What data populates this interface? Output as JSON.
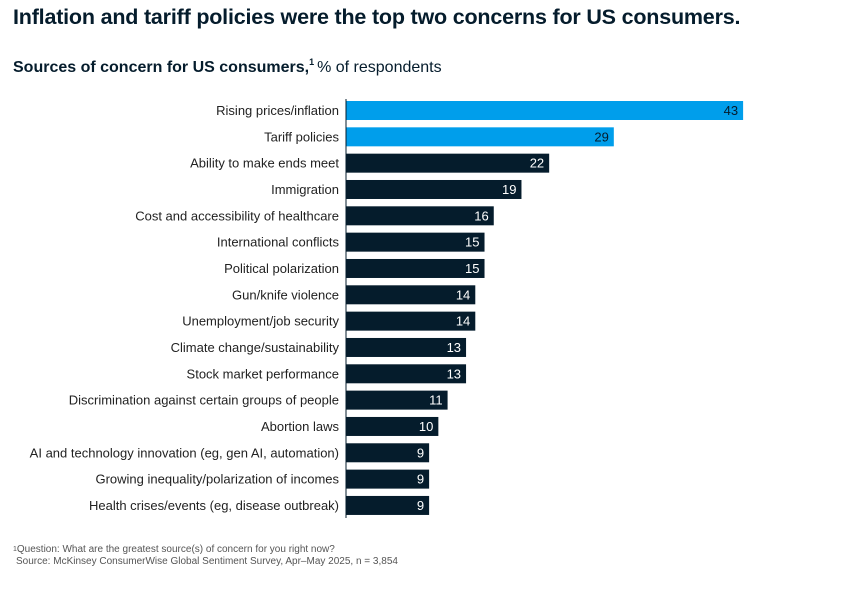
{
  "headline": "Inflation and tariff policies were the top two concerns for US consumers.",
  "subtitle": {
    "title": "Sources of concern for US consumers,",
    "footnote_marker": "1",
    "unit": "% of respondents"
  },
  "footnotes": {
    "marker": "1",
    "question": "Question: What are the greatest source(s) of concern for you right now?",
    "source": "Source: McKinsey ConsumerWise Global Sentiment Survey, Apr–May 2025, n = 3,854"
  },
  "colors": {
    "highlight": "#009eeb",
    "default": "#051c2c",
    "highlight_text": "#051c2c",
    "default_text": "#ffffff"
  },
  "chart_data": {
    "type": "bar",
    "orientation": "horizontal",
    "title": "Sources of concern for US consumers,",
    "unit": "% of respondents",
    "xlim": [
      0,
      45
    ],
    "grid": false,
    "categories": [
      "Rising prices/inflation",
      "Tariff policies",
      "Ability to make ends meet",
      "Immigration",
      "Cost and accessibility of healthcare",
      "International conflicts",
      "Political polarization",
      "Gun/knife violence",
      "Unemployment/job security",
      "Climate change/sustainability",
      "Stock market performance",
      "Discrimination against certain groups of people",
      "Abortion laws",
      "AI and technology innovation (eg, gen AI, automation)",
      "Growing inequality/polarization of incomes",
      "Health crises/events (eg, disease outbreak)"
    ],
    "values": [
      43,
      29,
      22,
      19,
      16,
      15,
      15,
      14,
      14,
      13,
      13,
      11,
      10,
      9,
      9,
      9
    ],
    "highlighted": [
      true,
      true,
      false,
      false,
      false,
      false,
      false,
      false,
      false,
      false,
      false,
      false,
      false,
      false,
      false,
      false
    ]
  }
}
